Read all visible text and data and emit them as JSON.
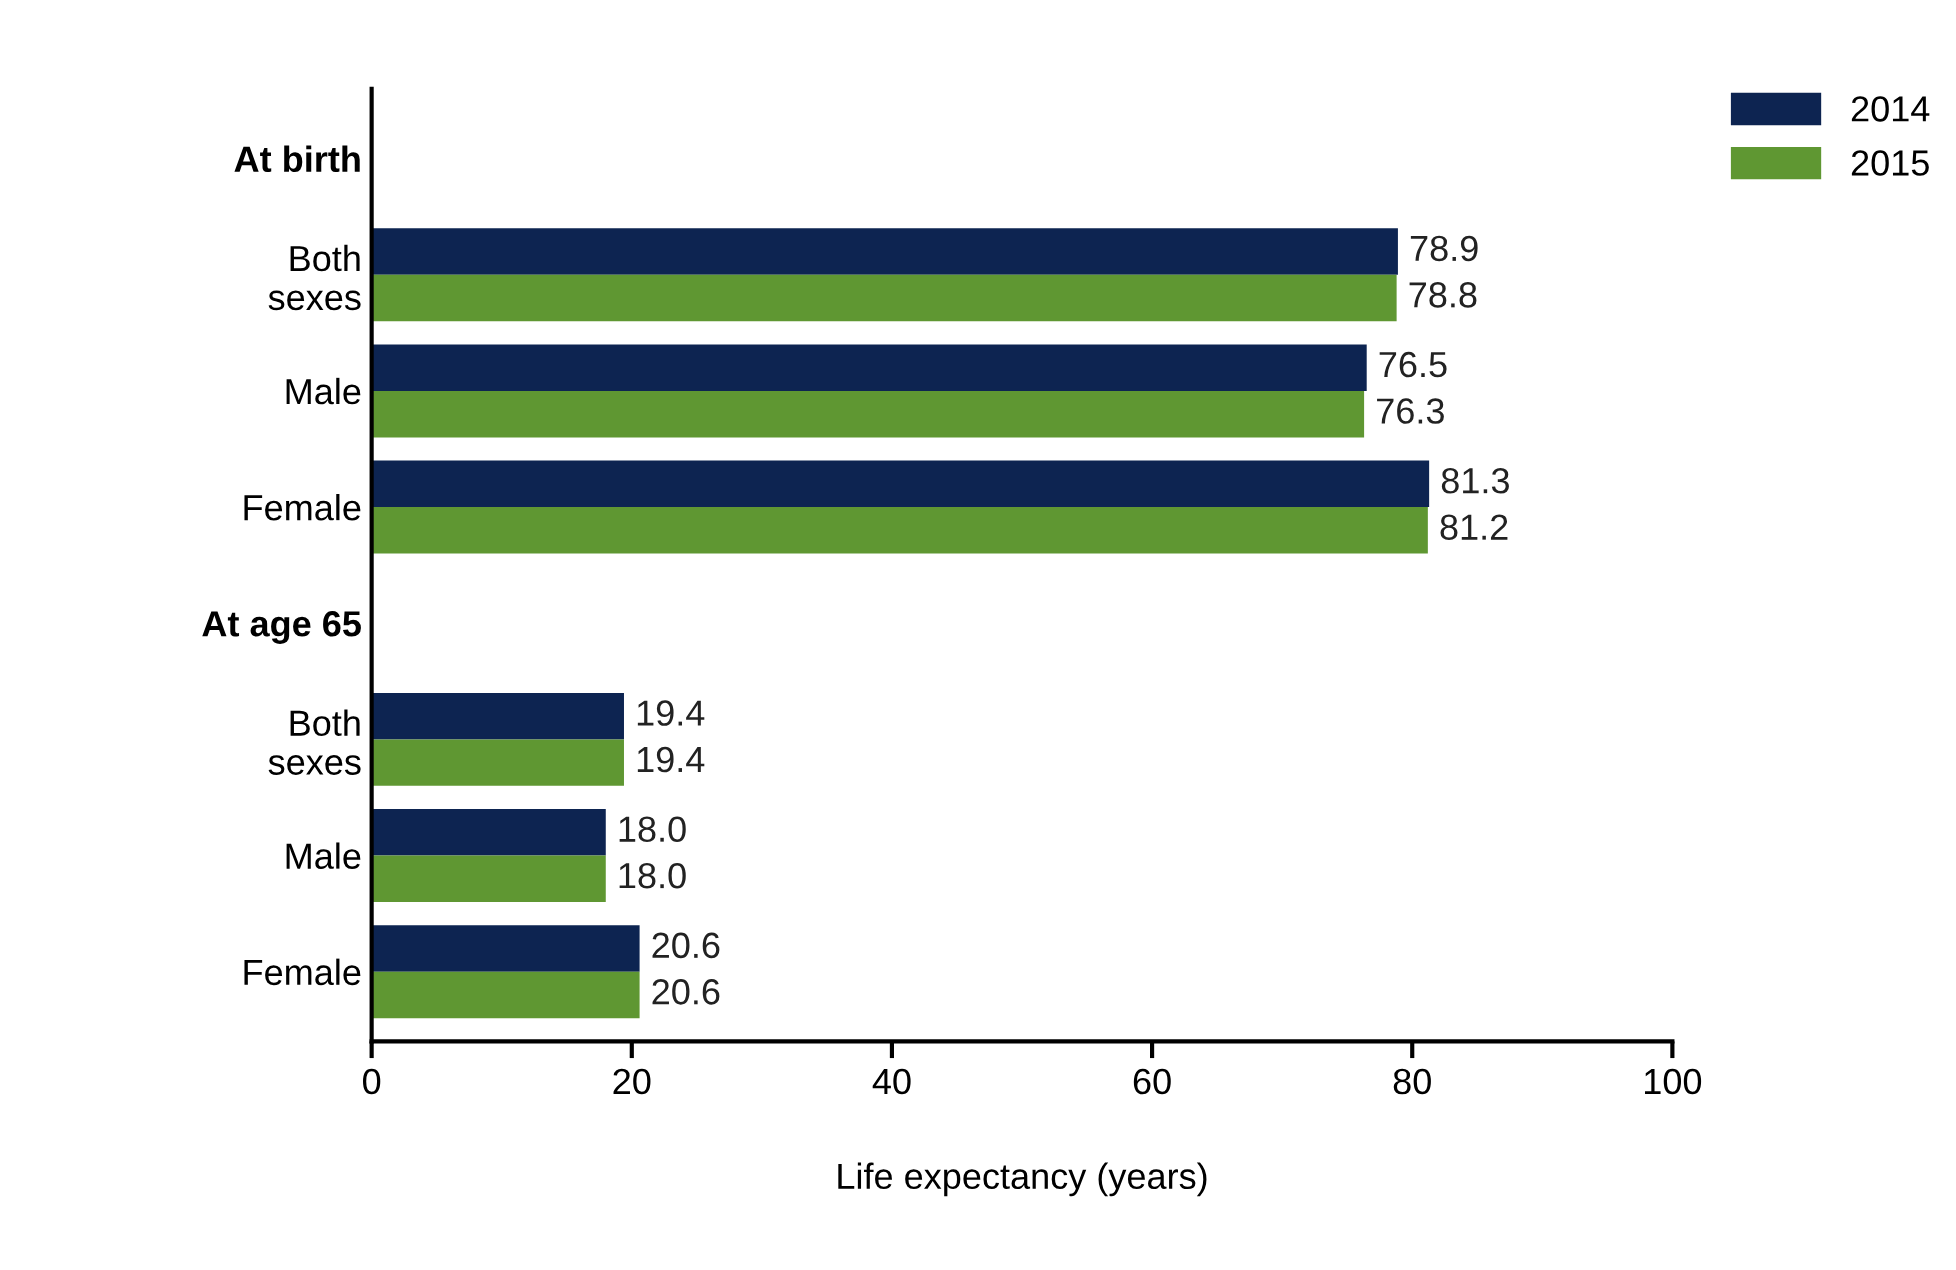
{
  "chart_data": {
    "type": "bar",
    "orientation": "horizontal",
    "xlabel": "Life expectancy (years)",
    "categories": [
      "At birth",
      "Both\nsexes",
      "Male",
      "Female",
      "At age 65",
      "Both\nsexes",
      "Male",
      "Female"
    ],
    "series": [
      {
        "name": "2014",
        "color": "#0d2451",
        "values": [
          null,
          78.9,
          76.5,
          81.3,
          null,
          19.4,
          18.0,
          20.6
        ],
        "value_labels": [
          null,
          "78.9",
          "76.5",
          "81.3",
          null,
          "19.4",
          "18.0",
          "20.6"
        ]
      },
      {
        "name": "2015",
        "color": "#5f9732",
        "values": [
          null,
          78.8,
          76.3,
          81.2,
          null,
          19.4,
          18.0,
          20.6
        ],
        "value_labels": [
          null,
          "78.8",
          "76.3",
          "81.2",
          null,
          "19.4",
          "18.0",
          "20.6"
        ]
      }
    ],
    "xlim": [
      0,
      100
    ],
    "xticks": [
      0,
      20,
      40,
      60,
      80,
      100
    ],
    "legend": "top right",
    "grid": false
  }
}
